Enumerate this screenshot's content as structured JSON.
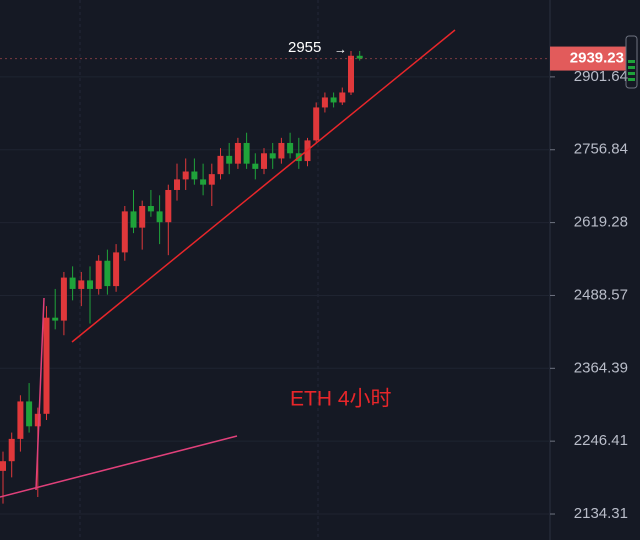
{
  "chart_data": {
    "type": "candlestick",
    "label": "ETH 4小时",
    "high_annotation": 2955,
    "last_price": 2939.23,
    "log_scale": true,
    "grid": true,
    "up_color": "#e0383b",
    "down_color": "#1fa33a",
    "last_price_color": "#e25b5b",
    "ylim": [
      2095.7,
      3062.7
    ],
    "yticks": [
      2134.31,
      2246.41,
      2364.39,
      2488.57,
      2619.28,
      2756.84,
      2901.64
    ],
    "open": [
      2200,
      2215,
      2250,
      2310,
      2270,
      2290,
      2450,
      2445,
      2520,
      2500,
      2515,
      2500,
      2550,
      2505,
      2565,
      2640,
      2610,
      2650,
      2640,
      2620,
      2680,
      2700,
      2715,
      2700,
      2690,
      2710,
      2745,
      2730,
      2770,
      2730,
      2720,
      2750,
      2740,
      2770,
      2750,
      2735,
      2775,
      2840,
      2860,
      2850,
      2870,
      2945
    ],
    "high": [
      2230,
      2260,
      2320,
      2340,
      2300,
      2470,
      2500,
      2530,
      2540,
      2530,
      2540,
      2560,
      2570,
      2580,
      2650,
      2680,
      2660,
      2680,
      2670,
      2690,
      2730,
      2740,
      2740,
      2730,
      2730,
      2760,
      2770,
      2780,
      2790,
      2750,
      2760,
      2770,
      2780,
      2790,
      2780,
      2780,
      2850,
      2870,
      2870,
      2880,
      2955,
      2955
    ],
    "low": [
      2150,
      2190,
      2230,
      2260,
      2160,
      2280,
      2430,
      2420,
      2480,
      2470,
      2440,
      2490,
      2490,
      2495,
      2550,
      2600,
      2570,
      2630,
      2580,
      2560,
      2660,
      2680,
      2690,
      2670,
      2650,
      2700,
      2710,
      2720,
      2720,
      2700,
      2710,
      2720,
      2730,
      2740,
      2720,
      2725,
      2770,
      2830,
      2840,
      2845,
      2865,
      2935
    ],
    "close": [
      2215,
      2250,
      2310,
      2270,
      2290,
      2450,
      2445,
      2520,
      2500,
      2515,
      2500,
      2550,
      2505,
      2565,
      2640,
      2610,
      2650,
      2640,
      2620,
      2680,
      2700,
      2715,
      2700,
      2690,
      2710,
      2745,
      2730,
      2770,
      2730,
      2720,
      2750,
      2740,
      2770,
      2750,
      2735,
      2775,
      2840,
      2860,
      2850,
      2870,
      2945,
      2939.23
    ]
  }
}
